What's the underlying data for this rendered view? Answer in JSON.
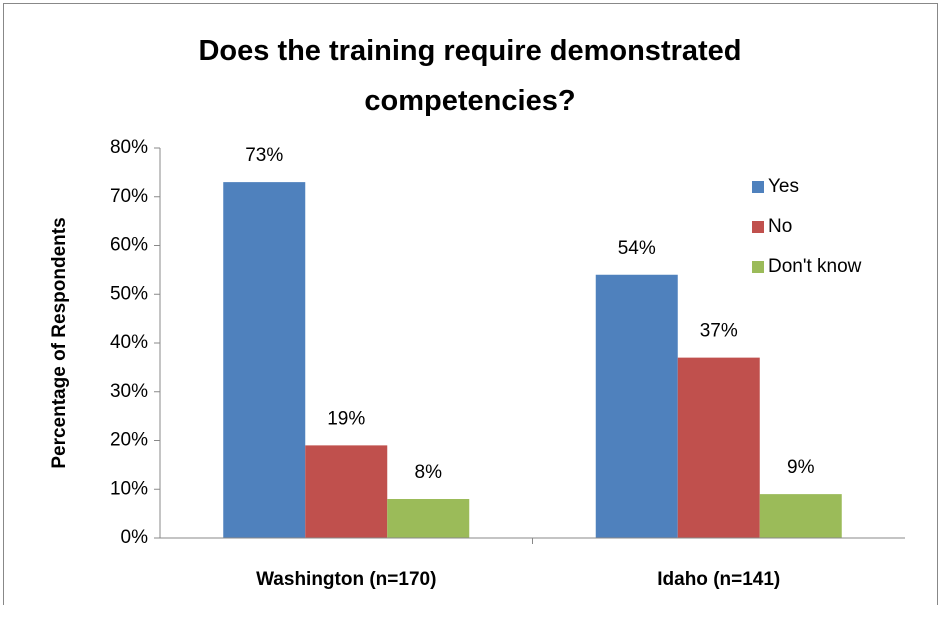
{
  "chart_data": {
    "type": "bar",
    "title": "Does the training require demonstrated competencies?",
    "y_label": "Percentage of Respondents",
    "categories": [
      "Washington (n=170)",
      "Idaho (n=141)"
    ],
    "series": [
      {
        "name": "Yes",
        "color": "#4f81bd",
        "values": [
          73,
          54
        ],
        "value_labels": [
          "73%",
          "54%"
        ]
      },
      {
        "name": "No",
        "color": "#c0504d",
        "values": [
          19,
          37
        ],
        "value_labels": [
          "19%",
          "37%"
        ]
      },
      {
        "name": "Don't know",
        "color": "#9bbb59",
        "values": [
          8,
          9
        ],
        "value_labels": [
          "8%",
          "9%"
        ]
      }
    ],
    "ylim": [
      0,
      80
    ],
    "yticks": [
      {
        "value": 0,
        "label": "0%"
      },
      {
        "value": 10,
        "label": "10%"
      },
      {
        "value": 20,
        "label": "20%"
      },
      {
        "value": 30,
        "label": "30%"
      },
      {
        "value": 40,
        "label": "40%"
      },
      {
        "value": 50,
        "label": "50%"
      },
      {
        "value": 60,
        "label": "60%"
      },
      {
        "value": 70,
        "label": "70%"
      },
      {
        "value": 80,
        "label": "80%"
      }
    ],
    "grid": false,
    "legend": "right"
  }
}
